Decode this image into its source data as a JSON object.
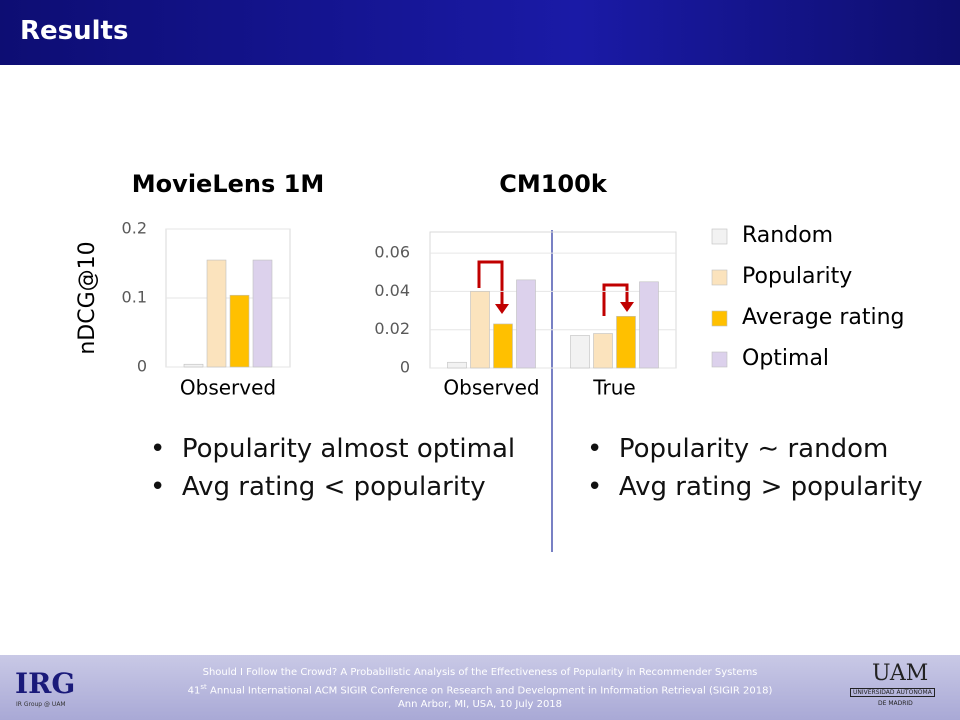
{
  "slide": {
    "title": "Results",
    "bullets_left": [
      "Popularity almost optimal",
      "Avg rating < popularity"
    ],
    "bullets_right": [
      "Popularity ∼ random",
      "Avg rating > popularity"
    ],
    "footer": {
      "line1": "Should I Follow the Crowd? A Probabilistic Analysis of the Effectiveness of Popularity in Recommender Systems",
      "line2_num": "41",
      "line2_sup": "st",
      "line2_rest": " Annual International ACM SIGIR Conference on Research and Development in Information Retrieval (SIGIR 2018)",
      "line3": "Ann Arbor, MI, USA, 10 July 2018"
    },
    "logo_left": "IRG",
    "logo_left_sub": "IR Group @ UAM",
    "logo_right": "UAM",
    "logo_right_sub1": "UNIVERSIDAD AUTONOMA",
    "logo_right_sub2": "DE MADRID"
  },
  "chart_data": [
    {
      "type": "bar",
      "title": "MovieLens 1M",
      "ylabel": "nDCG@10",
      "categories": [
        "Observed"
      ],
      "series": [
        {
          "color": "#f2f2f2",
          "values": [
            0.004
          ]
        },
        {
          "color": "#fbe3bd",
          "values": [
            0.155
          ]
        },
        {
          "color": "#ffc000",
          "values": [
            0.104
          ]
        },
        {
          "color": "#dcd1ec",
          "values": [
            0.155
          ]
        }
      ],
      "ylim": [
        0,
        0.2
      ],
      "yticks": [
        0,
        0.1,
        0.2
      ],
      "grid": true
    },
    {
      "type": "bar",
      "title": "CM100k",
      "categories": [
        "Observed",
        "True"
      ],
      "series": [
        {
          "name": "Random",
          "color": "#f2f2f2",
          "values": [
            0.003,
            0.017
          ]
        },
        {
          "name": "Popularity",
          "color": "#fbe3bd",
          "values": [
            0.04,
            0.018
          ]
        },
        {
          "name": "Average rating",
          "color": "#ffc000",
          "values": [
            0.023,
            0.027
          ]
        },
        {
          "name": "Optimal",
          "color": "#dcd1ec",
          "values": [
            0.046,
            0.045
          ]
        }
      ],
      "ylim": [
        0,
        0.071
      ],
      "yticks": [
        0,
        0.02,
        0.04,
        0.06
      ],
      "grid": true,
      "legend": "right"
    }
  ]
}
